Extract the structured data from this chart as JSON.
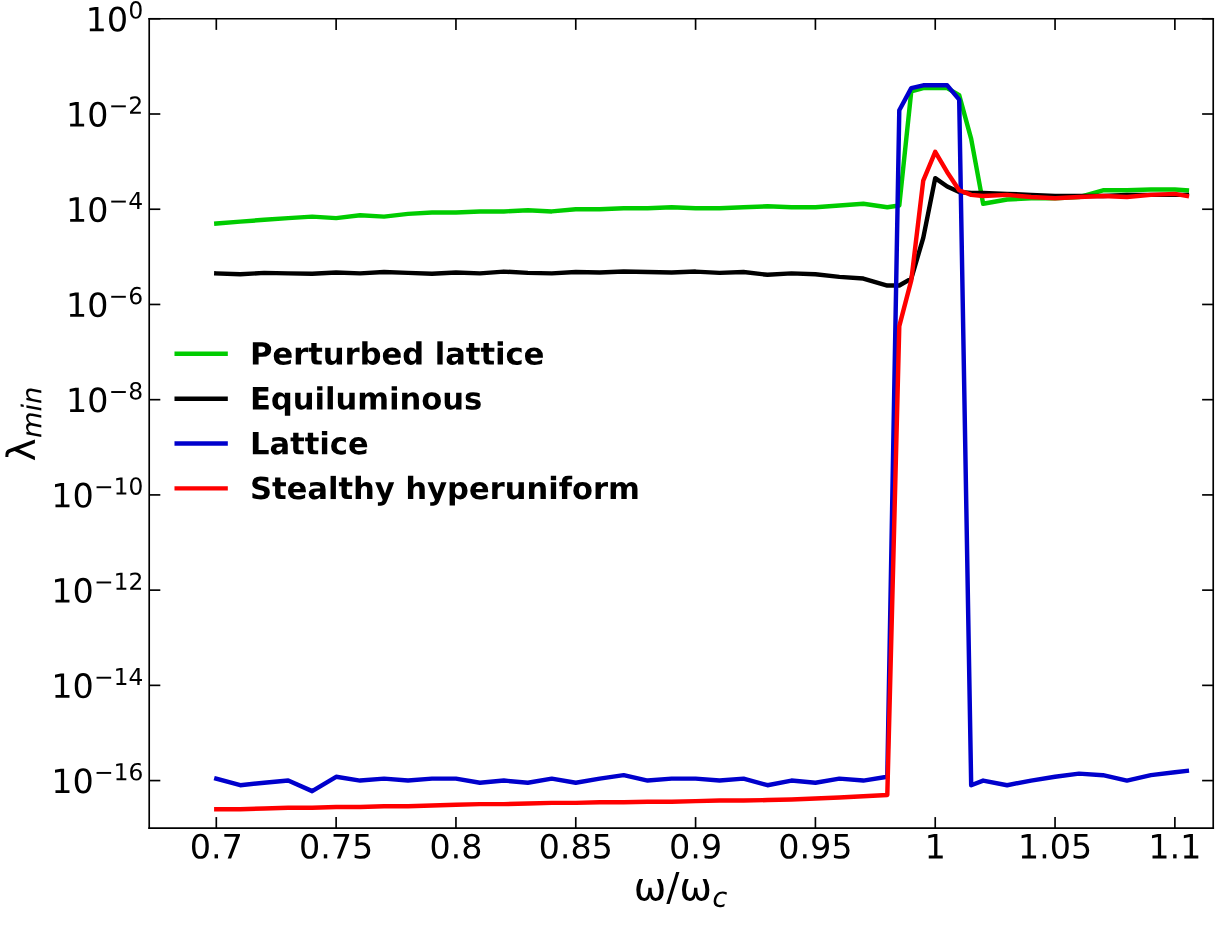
{
  "chart_data": {
    "type": "line",
    "xlabel": "ω/ω$_{c}$",
    "ylabel": "λ$_{min}$",
    "log": "y",
    "xlim": [
      0.672,
      1.116
    ],
    "ylim": [
      1e-17,
      1
    ],
    "xticks": [
      {
        "value": 0.7,
        "label": "0.7"
      },
      {
        "value": 0.75,
        "label": "0.75"
      },
      {
        "value": 0.8,
        "label": "0.8"
      },
      {
        "value": 0.85,
        "label": "0.85"
      },
      {
        "value": 0.9,
        "label": "0.9"
      },
      {
        "value": 0.95,
        "label": "0.95"
      },
      {
        "value": 1,
        "label": "1"
      },
      {
        "value": 1.05,
        "label": "1.05"
      },
      {
        "value": 1.1,
        "label": "1.1"
      }
    ],
    "yticks": [
      {
        "value": 1e-16,
        "label": "10$^{−16}$"
      },
      {
        "value": 1e-14,
        "label": "10$^{−14}$"
      },
      {
        "value": 1e-12,
        "label": "10$^{−12}$"
      },
      {
        "value": 1e-10,
        "label": "10$^{−10}$"
      },
      {
        "value": 1e-08,
        "label": "10$^{−8}$"
      },
      {
        "value": 1e-06,
        "label": "10$^{−6}$"
      },
      {
        "value": 0.0001,
        "label": "10$^{−4}$"
      },
      {
        "value": 0.01,
        "label": "10$^{−2}$"
      },
      {
        "value": 1,
        "label": "10$^{0}$"
      }
    ],
    "x": [
      0.7,
      0.71,
      0.72,
      0.73,
      0.74,
      0.75,
      0.76,
      0.77,
      0.78,
      0.79,
      0.8,
      0.81,
      0.82,
      0.83,
      0.84,
      0.85,
      0.86,
      0.87,
      0.88,
      0.89,
      0.9,
      0.91,
      0.92,
      0.93,
      0.94,
      0.95,
      0.96,
      0.97,
      0.98,
      0.985,
      0.99,
      0.995,
      1.0,
      1.005,
      1.01,
      1.015,
      1.02,
      1.03,
      1.04,
      1.05,
      1.06,
      1.07,
      1.08,
      1.09,
      1.1,
      1.105
    ],
    "legend": "center left",
    "marker": "none",
    "line_style": "solid",
    "grid": false,
    "series": [
      {
        "name": "Perturbed lattice",
        "color": "#00cc00",
        "values": [
          5e-05,
          5.5e-05,
          6e-05,
          6.5e-05,
          7e-05,
          6.5e-05,
          7.5e-05,
          7e-05,
          8e-05,
          8.5e-05,
          8.5e-05,
          9e-05,
          9e-05,
          9.5e-05,
          9e-05,
          0.0001,
          0.0001,
          0.000105,
          0.000105,
          0.00011,
          0.000105,
          0.000105,
          0.00011,
          0.000115,
          0.00011,
          0.00011,
          0.00012,
          0.00013,
          0.00011,
          0.00012,
          0.03,
          0.035,
          0.035,
          0.035,
          0.025,
          0.003,
          0.00013,
          0.00016,
          0.00017,
          0.00017,
          0.00018,
          0.00025,
          0.00025,
          0.00026,
          0.00026,
          0.00025
        ]
      },
      {
        "name": "Equiluminous",
        "color": "#000000",
        "values": [
          4.5e-06,
          4.3e-06,
          4.6e-06,
          4.5e-06,
          4.4e-06,
          4.7e-06,
          4.5e-06,
          4.8e-06,
          4.6e-06,
          4.4e-06,
          4.7e-06,
          4.5e-06,
          4.9e-06,
          4.6e-06,
          4.5e-06,
          4.8e-06,
          4.7e-06,
          4.9e-06,
          4.8e-06,
          4.7e-06,
          4.9e-06,
          4.6e-06,
          4.8e-06,
          4.2e-06,
          4.5e-06,
          4.3e-06,
          3.8e-06,
          3.5e-06,
          2.5e-06,
          2.5e-06,
          3.5e-06,
          2.5e-05,
          0.00045,
          0.0003,
          0.00023,
          0.00022,
          0.00022,
          0.00021,
          0.0002,
          0.00019,
          0.00019,
          0.00019,
          0.0002,
          0.0002,
          0.0002,
          0.0002
        ]
      },
      {
        "name": "Lattice",
        "color": "#0000cc",
        "values": [
          1.1e-16,
          8e-17,
          9e-17,
          1e-16,
          6e-17,
          1.2e-16,
          1e-16,
          1.1e-16,
          1e-16,
          1.1e-16,
          1.1e-16,
          9e-17,
          1e-16,
          9e-17,
          1.1e-16,
          9e-17,
          1.1e-16,
          1.3e-16,
          1e-16,
          1.1e-16,
          1.1e-16,
          1e-16,
          1.1e-16,
          8e-17,
          1e-16,
          9e-17,
          1.1e-16,
          1e-16,
          1.2e-16,
          0.012,
          0.035,
          0.04,
          0.04,
          0.04,
          0.02,
          8e-17,
          1e-16,
          8e-17,
          1e-16,
          1.2e-16,
          1.4e-16,
          1.3e-16,
          1e-16,
          1.3e-16,
          1.5e-16,
          1.6e-16
        ]
      },
      {
        "name": "Stealthy hyperuniform",
        "color": "#ff0000",
        "values": [
          2.5e-17,
          2.5e-17,
          2.6e-17,
          2.7e-17,
          2.7e-17,
          2.8e-17,
          2.8e-17,
          2.9e-17,
          2.9e-17,
          3e-17,
          3.1e-17,
          3.2e-17,
          3.2e-17,
          3.3e-17,
          3.4e-17,
          3.4e-17,
          3.5e-17,
          3.5e-17,
          3.6e-17,
          3.6e-17,
          3.7e-17,
          3.8e-17,
          3.8e-17,
          3.9e-17,
          4e-17,
          4.2e-17,
          4.4e-17,
          4.7e-17,
          5e-17,
          3.5e-07,
          3.2e-06,
          0.0004,
          0.0016,
          0.0006,
          0.00025,
          0.0002,
          0.00019,
          0.0002,
          0.00018,
          0.00017,
          0.00018,
          0.00019,
          0.00018,
          0.0002,
          0.00021,
          0.00019
        ]
      }
    ]
  }
}
